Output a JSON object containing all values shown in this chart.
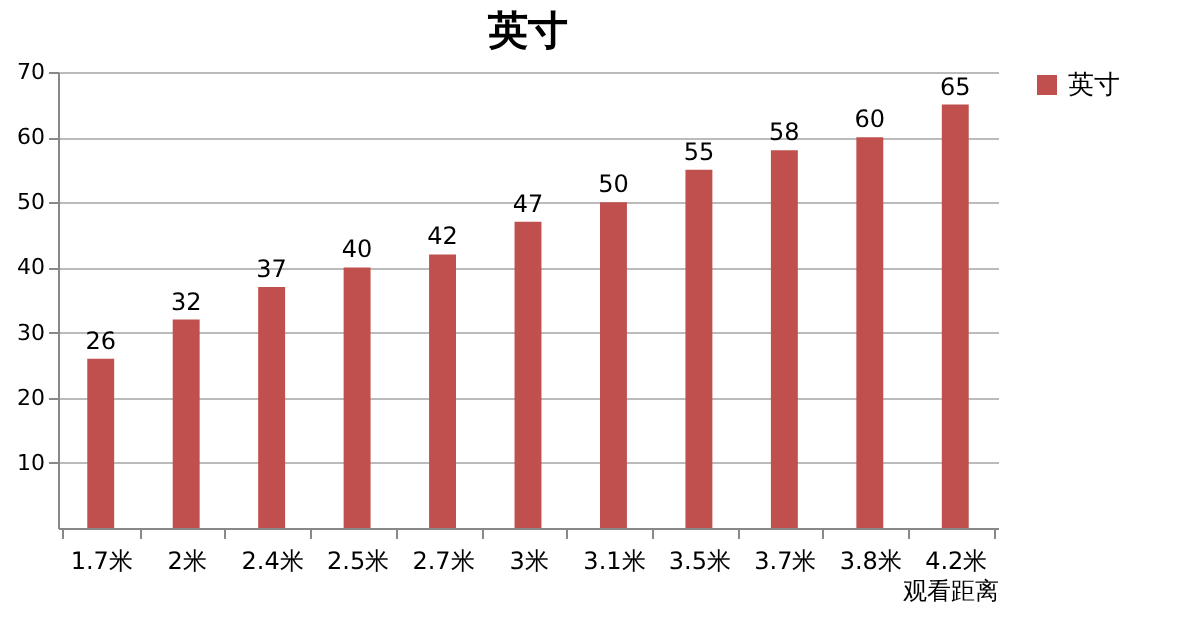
{
  "chart_data": {
    "type": "bar",
    "title": "英寸",
    "xlabel": "观看距离",
    "categories": [
      "1.7米",
      "2米",
      "2.4米",
      "2.5米",
      "2.7米",
      "3米",
      "3.1米",
      "3.5米",
      "3.7米",
      "3.8米",
      "4.2米"
    ],
    "series": [
      {
        "name": "英寸",
        "color": "#c0504d",
        "values": [
          26,
          32,
          37,
          40,
          42,
          47,
          50,
          55,
          58,
          60,
          65
        ]
      }
    ],
    "ylim": [
      0,
      70
    ],
    "yticks": [
      10,
      20,
      30,
      40,
      50,
      60,
      70
    ],
    "grid": "y",
    "legend": "right",
    "data_labels": true
  }
}
